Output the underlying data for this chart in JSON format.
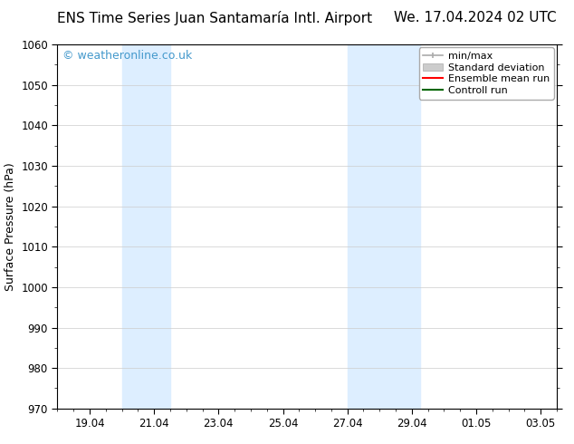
{
  "title_left": "ENS Time Series Juan Santamaría Intl. Airport",
  "title_right": "We. 17.04.2024 02 UTC",
  "ylabel": "Surface Pressure (hPa)",
  "ylim": [
    970,
    1060
  ],
  "ytick_interval": 10,
  "background_color": "#ffffff",
  "plot_bg_color": "#ffffff",
  "watermark": "© weatheronline.co.uk",
  "watermark_color": "#4499cc",
  "shaded_bands": [
    {
      "x_start": 20.0,
      "x_end": 21.5,
      "color": "#ddeeff"
    },
    {
      "x_start": 27.0,
      "x_end": 29.25,
      "color": "#ddeeff"
    }
  ],
  "xtick_labels": [
    "19.04",
    "21.04",
    "23.04",
    "25.04",
    "27.04",
    "29.04",
    "01.05",
    "03.05"
  ],
  "xtick_positions": [
    19.0,
    21.0,
    23.0,
    25.0,
    27.0,
    29.0,
    31.0,
    33.0
  ],
  "xlim": [
    18.0,
    33.5
  ],
  "title_fontsize": 11,
  "tick_label_fontsize": 8.5,
  "axis_label_fontsize": 9,
  "grid_color": "#cccccc",
  "spine_color": "#000000",
  "legend_fontsize": 8,
  "watermark_fontsize": 9
}
